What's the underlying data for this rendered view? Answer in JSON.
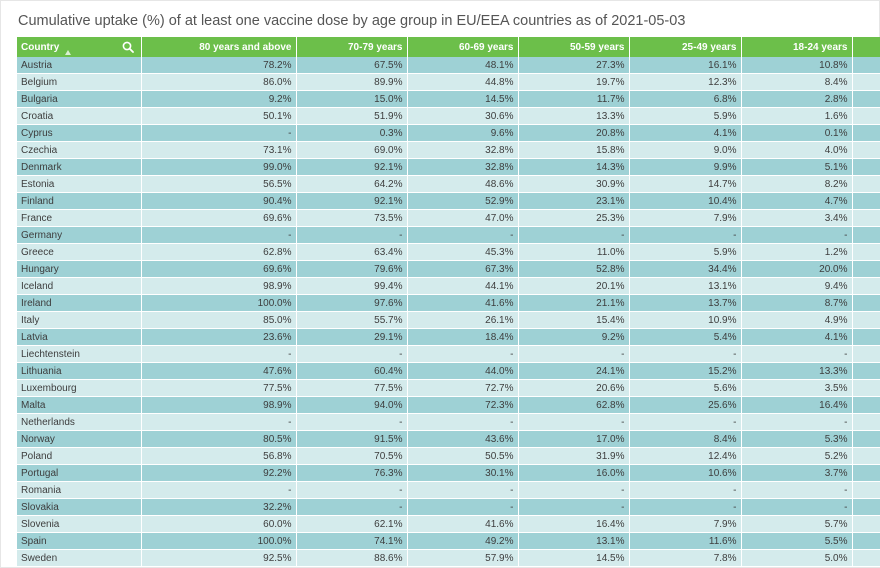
{
  "title": "Cumulative uptake (%) of at least one vaccine dose by age group in EU/EEA countries as of 2021-05-03",
  "icons": {
    "search": "search-icon",
    "sort": "sort-ascending-icon"
  },
  "colors": {
    "header": "#6cbf4a",
    "row_dark": "#9ed1d5",
    "row_light": "#d4ebec"
  },
  "chart_data": {
    "type": "table",
    "columns": [
      "Country",
      "80 years and above",
      "70-79 years",
      "60-69 years",
      "50-59 years",
      "25-49 years",
      "18-24 years"
    ],
    "rows": [
      [
        "Austria",
        "78.2%",
        "67.5%",
        "48.1%",
        "27.3%",
        "16.1%",
        "10.8%"
      ],
      [
        "Belgium",
        "86.0%",
        "89.9%",
        "44.8%",
        "19.7%",
        "12.3%",
        "8.4%"
      ],
      [
        "Bulgaria",
        "9.2%",
        "15.0%",
        "14.5%",
        "11.7%",
        "6.8%",
        "2.8%"
      ],
      [
        "Croatia",
        "50.1%",
        "51.9%",
        "30.6%",
        "13.3%",
        "5.9%",
        "1.6%"
      ],
      [
        "Cyprus",
        "-",
        "0.3%",
        "9.6%",
        "20.8%",
        "4.1%",
        "0.1%"
      ],
      [
        "Czechia",
        "73.1%",
        "69.0%",
        "32.8%",
        "15.8%",
        "9.0%",
        "4.0%"
      ],
      [
        "Denmark",
        "99.0%",
        "92.1%",
        "32.8%",
        "14.3%",
        "9.9%",
        "5.1%"
      ],
      [
        "Estonia",
        "56.5%",
        "64.2%",
        "48.6%",
        "30.9%",
        "14.7%",
        "8.2%"
      ],
      [
        "Finland",
        "90.4%",
        "92.1%",
        "52.9%",
        "23.1%",
        "10.4%",
        "4.7%"
      ],
      [
        "France",
        "69.6%",
        "73.5%",
        "47.0%",
        "25.3%",
        "7.9%",
        "3.4%"
      ],
      [
        "Germany",
        "-",
        "-",
        "-",
        "-",
        "-",
        "-"
      ],
      [
        "Greece",
        "62.8%",
        "63.4%",
        "45.3%",
        "11.0%",
        "5.9%",
        "1.2%"
      ],
      [
        "Hungary",
        "69.6%",
        "79.6%",
        "67.3%",
        "52.8%",
        "34.4%",
        "20.0%"
      ],
      [
        "Iceland",
        "98.9%",
        "99.4%",
        "44.1%",
        "20.1%",
        "13.1%",
        "9.4%"
      ],
      [
        "Ireland",
        "100.0%",
        "97.6%",
        "41.6%",
        "21.1%",
        "13.7%",
        "8.7%"
      ],
      [
        "Italy",
        "85.0%",
        "55.7%",
        "26.1%",
        "15.4%",
        "10.9%",
        "4.9%"
      ],
      [
        "Latvia",
        "23.6%",
        "29.1%",
        "18.4%",
        "9.2%",
        "5.4%",
        "4.1%"
      ],
      [
        "Liechtenstein",
        "-",
        "-",
        "-",
        "-",
        "-",
        "-"
      ],
      [
        "Lithuania",
        "47.6%",
        "60.4%",
        "44.0%",
        "24.1%",
        "15.2%",
        "13.3%"
      ],
      [
        "Luxembourg",
        "77.5%",
        "77.5%",
        "72.7%",
        "20.6%",
        "5.6%",
        "3.5%"
      ],
      [
        "Malta",
        "98.9%",
        "94.0%",
        "72.3%",
        "62.8%",
        "25.6%",
        "16.4%"
      ],
      [
        "Netherlands",
        "-",
        "-",
        "-",
        "-",
        "-",
        "-"
      ],
      [
        "Norway",
        "80.5%",
        "91.5%",
        "43.6%",
        "17.0%",
        "8.4%",
        "5.3%"
      ],
      [
        "Poland",
        "56.8%",
        "70.5%",
        "50.5%",
        "31.9%",
        "12.4%",
        "5.2%"
      ],
      [
        "Portugal",
        "92.2%",
        "76.3%",
        "30.1%",
        "16.0%",
        "10.6%",
        "3.7%"
      ],
      [
        "Romania",
        "-",
        "-",
        "-",
        "-",
        "-",
        "-"
      ],
      [
        "Slovakia",
        "32.2%",
        "-",
        "-",
        "-",
        "-",
        "-"
      ],
      [
        "Slovenia",
        "60.0%",
        "62.1%",
        "41.6%",
        "16.4%",
        "7.9%",
        "5.7%"
      ],
      [
        "Spain",
        "100.0%",
        "74.1%",
        "49.2%",
        "13.1%",
        "11.6%",
        "5.5%"
      ],
      [
        "Sweden",
        "92.5%",
        "88.6%",
        "57.9%",
        "14.5%",
        "7.8%",
        "5.0%"
      ]
    ]
  }
}
